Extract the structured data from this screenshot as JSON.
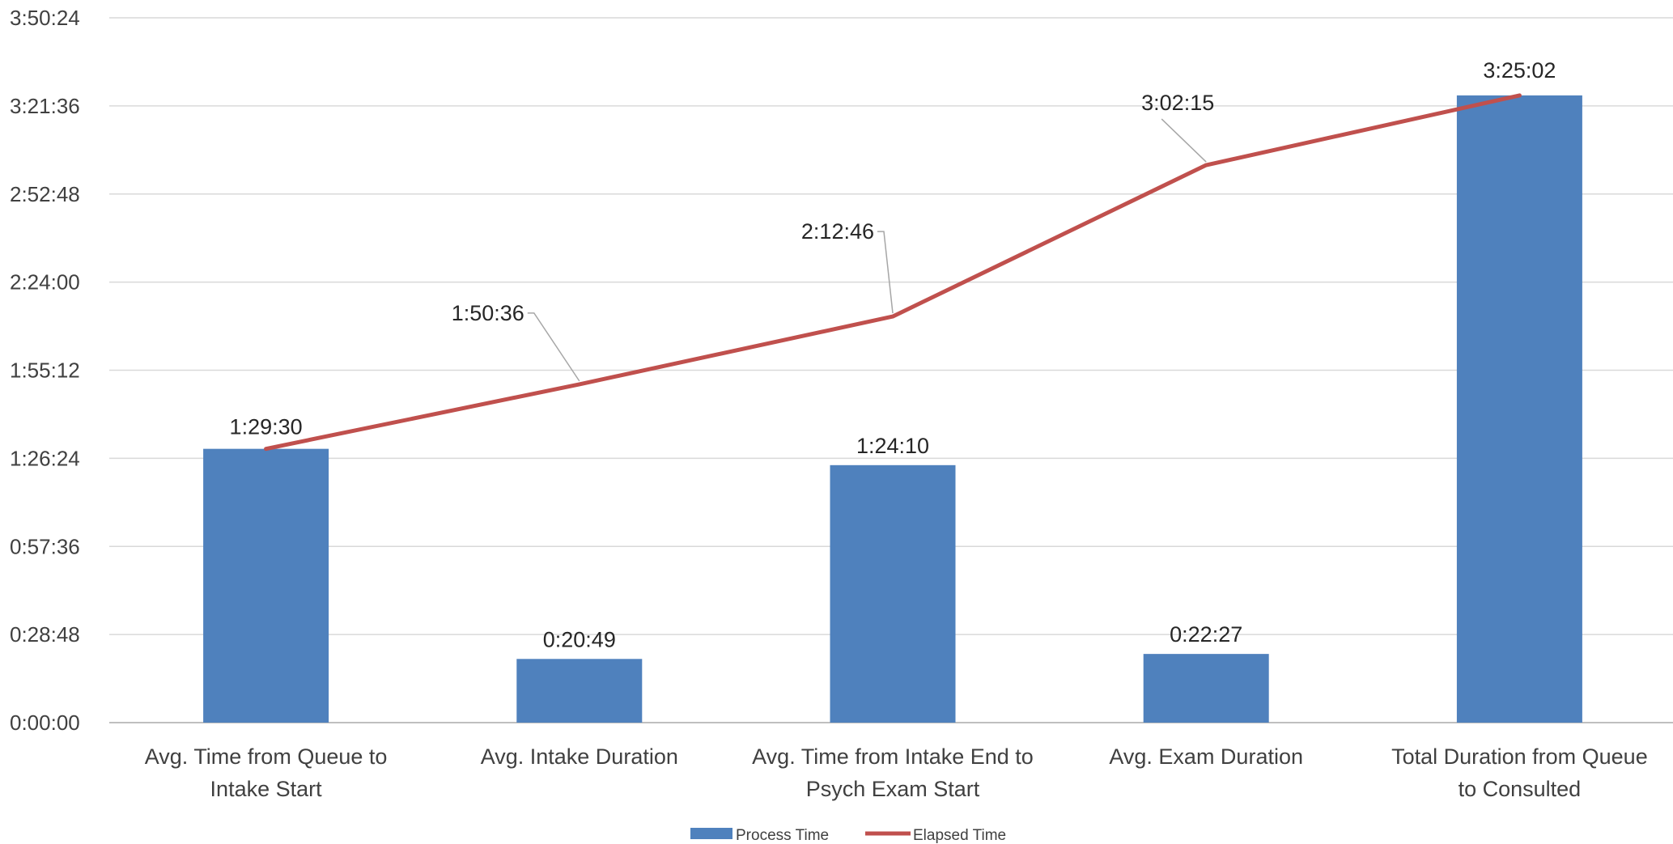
{
  "chart_data": {
    "type": "bar",
    "categories": [
      [
        "Avg. Time from Queue to",
        "Intake Start"
      ],
      [
        "Avg. Intake Duration"
      ],
      [
        "Avg. Time from Intake End to",
        "Psych Exam Start"
      ],
      [
        "Avg. Exam Duration"
      ],
      [
        "Total Duration from Queue",
        "to Consulted"
      ]
    ],
    "y_ticks": [
      "0:00:00",
      "0:28:48",
      "0:57:36",
      "1:26:24",
      "1:55:12",
      "2:24:00",
      "2:52:48",
      "3:21:36",
      "3:50:24"
    ],
    "ylim_seconds": [
      0,
      13824
    ],
    "grid": true,
    "legend_position": "bottom",
    "series": [
      {
        "name": "Process Time",
        "kind": "bar",
        "color": "#4F81BD",
        "values_seconds": [
          5370,
          1249,
          5050,
          1347,
          12302
        ],
        "labels": [
          "1:29:30",
          "0:20:49",
          "1:24:10",
          "0:22:27",
          "3:25:02"
        ]
      },
      {
        "name": "Elapsed Time",
        "kind": "line",
        "color": "#C0504D",
        "values_seconds": [
          5370,
          6636,
          7966,
          10935,
          12302
        ],
        "labels": [
          "1:29:30",
          "1:50:36",
          "2:12:46",
          "3:02:15",
          "3:25:02"
        ]
      }
    ]
  }
}
